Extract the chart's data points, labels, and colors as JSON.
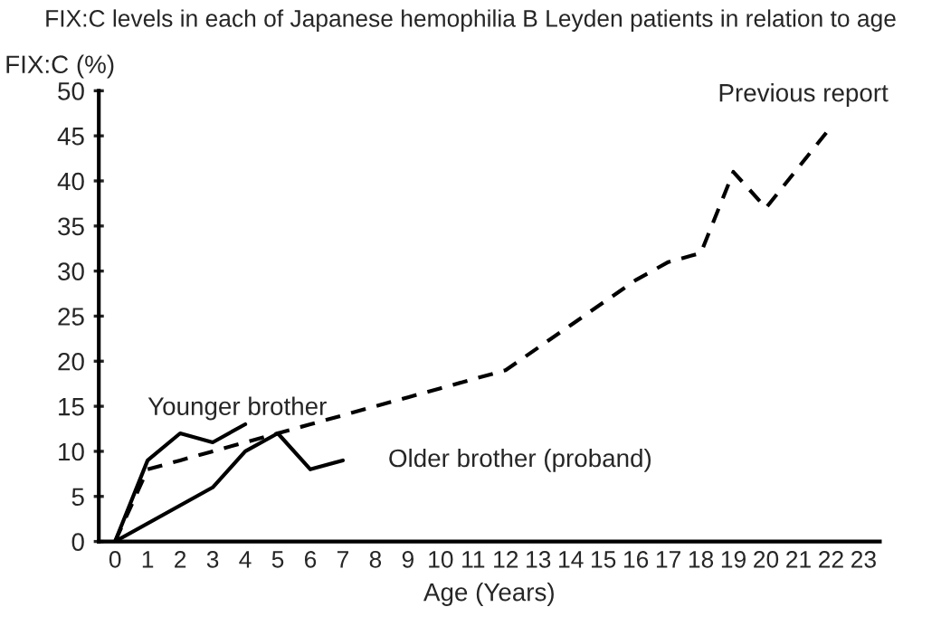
{
  "chart_data": {
    "type": "line",
    "title": "FIX:C levels in each of Japanese hemophilia B Leyden patients in relation to age",
    "xlabel": "Age (Years)",
    "ylabel": "FIX:C (%)",
    "categories": [
      "0",
      "1",
      "2",
      "3",
      "4",
      "5",
      "6",
      "7",
      "8",
      "9",
      "10",
      "11",
      "12",
      "13",
      "14",
      "15",
      "16",
      "17",
      "18",
      "19",
      "20",
      "21",
      "22",
      "23"
    ],
    "ylim": [
      0,
      50
    ],
    "yticks": [
      0,
      5,
      10,
      15,
      20,
      25,
      30,
      35,
      40,
      45,
      50
    ],
    "grid": false,
    "legend": false,
    "series": [
      {
        "name": "Younger brother",
        "color": "#000000",
        "line_style": "solid",
        "values": [
          0,
          9,
          12,
          11,
          13,
          null,
          null,
          null,
          null,
          null,
          null,
          null,
          null,
          null,
          null,
          null,
          null,
          null,
          null,
          null,
          null,
          null,
          null,
          null
        ]
      },
      {
        "name": "Older brother (proband)",
        "color": "#000000",
        "line_style": "solid",
        "values": [
          0,
          null,
          null,
          6,
          10,
          12,
          8,
          9,
          null,
          null,
          null,
          null,
          null,
          null,
          null,
          null,
          null,
          null,
          null,
          null,
          null,
          null,
          null,
          null
        ]
      },
      {
        "name": "Previous report",
        "color": "#000000",
        "line_style": "dashed",
        "values": [
          0,
          8,
          9,
          10,
          11,
          12,
          13,
          14,
          15,
          16,
          17,
          18,
          19,
          21.5,
          24,
          26.5,
          29,
          31,
          32,
          41,
          37,
          null,
          46,
          null
        ]
      }
    ]
  }
}
